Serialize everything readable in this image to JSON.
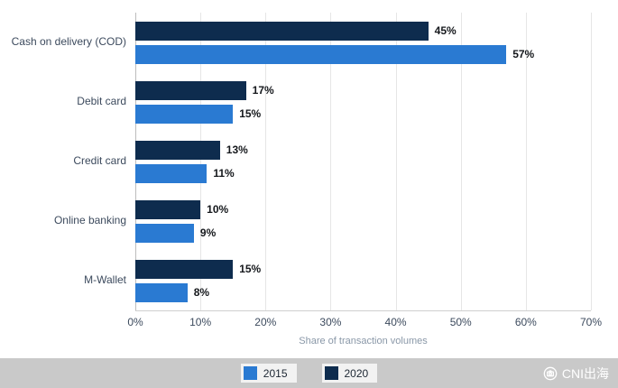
{
  "chart_data": {
    "type": "bar",
    "orientation": "horizontal",
    "categories": [
      "Cash on delivery (COD)",
      "Debit card",
      "Credit card",
      "Online banking",
      "M-Wallet"
    ],
    "series": [
      {
        "name": "2020",
        "color": "#0e2c4e",
        "values": [
          45,
          17,
          13,
          10,
          15
        ]
      },
      {
        "name": "2015",
        "color": "#2a7ad2",
        "values": [
          57,
          15,
          11,
          9,
          8
        ]
      }
    ],
    "value_suffix": "%",
    "xlabel": "Share of transaction volumes",
    "x_ticks": [
      "0%",
      "10%",
      "20%",
      "30%",
      "40%",
      "50%",
      "60%",
      "70%"
    ],
    "xlim": [
      0,
      70
    ],
    "grid": true,
    "legend_position": "bottom",
    "legend": [
      {
        "label": "2015",
        "color": "#2a7ad2"
      },
      {
        "label": "2020",
        "color": "#0e2c4e"
      }
    ]
  },
  "watermark": {
    "text": "CNI出海"
  }
}
